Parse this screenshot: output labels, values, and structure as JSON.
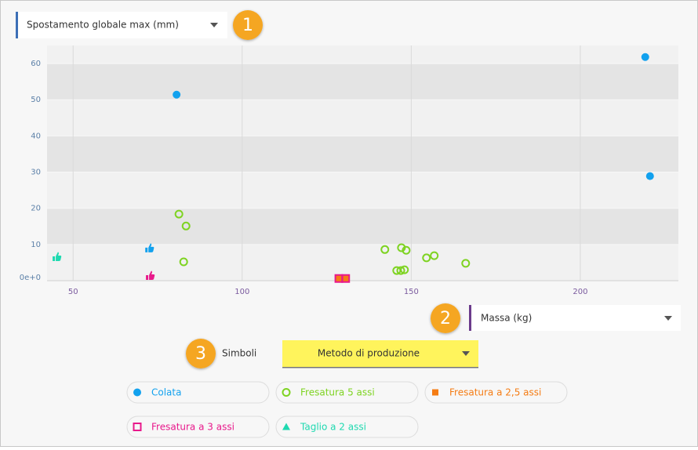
{
  "badges": [
    "1",
    "2",
    "3"
  ],
  "symbols_label": "Simboli",
  "symbols_select": "Metodo di produzione",
  "chart_data": {
    "type": "scatter",
    "ylabel": "Spostamento globale max (mm)",
    "xlabel": "Massa (kg)",
    "xlim": [
      42.3,
      229
    ],
    "ylim": [
      0,
      65
    ],
    "xticks": [
      50,
      100,
      150,
      200
    ],
    "yticks": [
      {
        "value": 0,
        "label": "0e+0"
      },
      10,
      20,
      30,
      40,
      50,
      60
    ],
    "grid": true,
    "series": [
      {
        "name": "Colata",
        "color": "#12a1ee",
        "marker": "circle",
        "x": [
          80.6,
          219.2,
          220.6
        ],
        "y": [
          51.4,
          61.8,
          28.9
        ],
        "thumbs_x": [
          72.5
        ],
        "thumbs_y": [
          8.9
        ]
      },
      {
        "name": "Fresatura 5 assi",
        "color": "#7ed321",
        "marker": "ring",
        "x": [
          81.3,
          83.4,
          82.7,
          142.2,
          147.1,
          148.5,
          145.7,
          146.9,
          148.0,
          154.5,
          156.8,
          166.1
        ],
        "y": [
          18.4,
          15.1,
          5.2,
          8.6,
          9.1,
          8.4,
          2.8,
          2.8,
          3.0,
          6.3,
          6.9,
          4.8
        ],
        "thumbs_x": [],
        "thumbs_y": []
      },
      {
        "name": "Fresatura a 2,5 assi",
        "color": "#f57c14",
        "marker": "square",
        "x": [
          128.6,
          130.6
        ],
        "y": [
          0.6,
          0.6
        ],
        "thumbs_x": [],
        "thumbs_y": []
      },
      {
        "name": "Fresatura a 3 assi",
        "color": "#e8198b",
        "marker": "square-open",
        "x": [
          128.6,
          130.6
        ],
        "y": [
          0.6,
          0.6
        ],
        "thumbs_x": [
          72.7
        ],
        "thumbs_y": [
          1.3
        ]
      },
      {
        "name": "Taglio a 2 assi",
        "color": "#1fd9b0",
        "marker": "triangle",
        "x": [],
        "y": [],
        "thumbs_x": [
          45.1
        ],
        "thumbs_y": [
          6.5
        ]
      }
    ]
  }
}
